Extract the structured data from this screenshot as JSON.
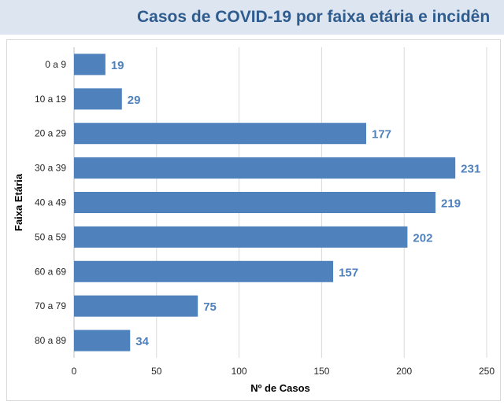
{
  "title": "Casos de COVID-19 por faixa etária e incidên",
  "chart_data": {
    "type": "bar",
    "orientation": "horizontal",
    "title": "Casos de COVID-19 por faixa etária e incidên",
    "categories": [
      "0 a 9",
      "10 a 19",
      "20 a 29",
      "30 a 39",
      "40 a 49",
      "50 a 59",
      "60  a 69",
      "70 a 79",
      "80 a 89"
    ],
    "values": [
      19,
      29,
      177,
      231,
      219,
      202,
      157,
      75,
      34
    ],
    "xlabel": "Nº de Casos",
    "ylabel": "Faixa Etária",
    "xlim": [
      0,
      250
    ],
    "xticks": [
      "0",
      "50",
      "100",
      "150",
      "200",
      "250"
    ],
    "data_labels": [
      "19",
      "29",
      "177",
      "231",
      "219",
      "202",
      "157",
      "75",
      "34"
    ],
    "grid": "vertical",
    "legend": "none",
    "colors": {
      "bar": "#4f81bd",
      "label": "#4f81bd",
      "title": "#2f5c8f",
      "title_band": "#dde5f0",
      "grid": "#d9d9d9"
    }
  }
}
